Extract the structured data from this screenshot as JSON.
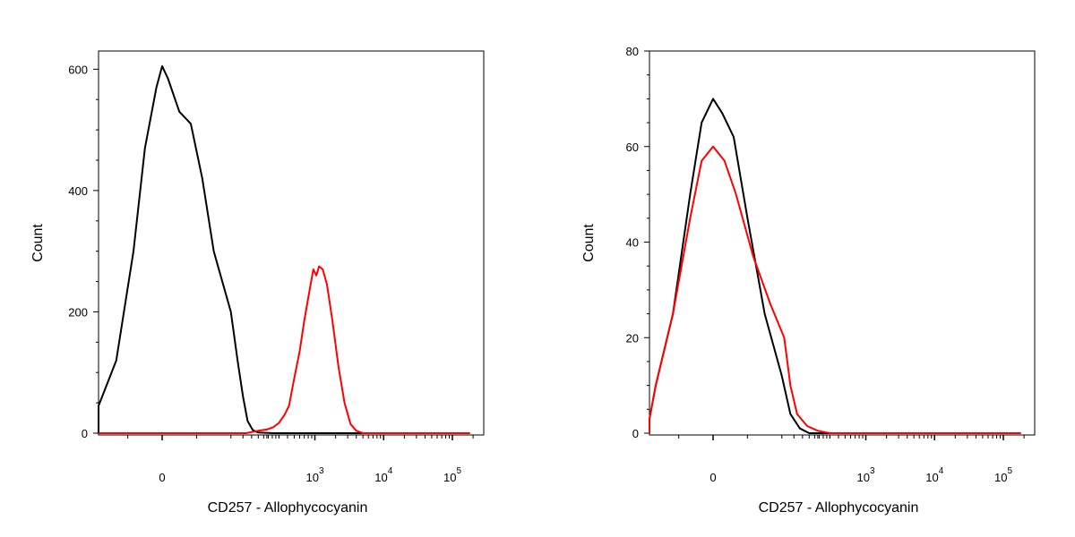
{
  "chart_data": [
    {
      "type": "line",
      "xlabel": "CD257 - Allophycocyanin",
      "ylabel": "Count",
      "x_scale": "biexponential",
      "x_ticks": [
        {
          "value": 0,
          "base": "0",
          "exp": ""
        },
        {
          "value": 1000,
          "base": "10",
          "exp": "3"
        },
        {
          "value": 10000,
          "base": "10",
          "exp": "4"
        },
        {
          "value": 100000,
          "base": "10",
          "exp": "5"
        }
      ],
      "y_ticks": [
        "0",
        "200",
        "400",
        "600"
      ],
      "ylim": [
        0,
        630
      ],
      "grid": false,
      "series": [
        {
          "color": "#000000",
          "points": [
            [
              -300,
              0
            ],
            [
              -150,
              3
            ],
            [
              -100,
              12
            ],
            [
              -60,
              45
            ],
            [
              -40,
              120
            ],
            [
              -25,
              300
            ],
            [
              -15,
              470
            ],
            [
              -5,
              570
            ],
            [
              0,
              605
            ],
            [
              5,
              585
            ],
            [
              15,
              530
            ],
            [
              25,
              510
            ],
            [
              35,
              420
            ],
            [
              45,
              300
            ],
            [
              60,
              200
            ],
            [
              75,
              120
            ],
            [
              90,
              60
            ],
            [
              105,
              20
            ],
            [
              125,
              5
            ],
            [
              150,
              1
            ],
            [
              250,
              0
            ],
            [
              180000,
              0
            ]
          ]
        },
        {
          "color": "#ff0000",
          "points": [
            [
              -300,
              0
            ],
            [
              100,
              0
            ],
            [
              150,
              4
            ],
            [
              200,
              6
            ],
            [
              250,
              10
            ],
            [
              300,
              17
            ],
            [
              360,
              30
            ],
            [
              420,
              45
            ],
            [
              500,
              90
            ],
            [
              600,
              135
            ],
            [
              700,
              185
            ],
            [
              850,
              240
            ],
            [
              950,
              270
            ],
            [
              1050,
              260
            ],
            [
              1150,
              275
            ],
            [
              1300,
              270
            ],
            [
              1500,
              245
            ],
            [
              1800,
              185
            ],
            [
              2200,
              110
            ],
            [
              2700,
              50
            ],
            [
              3300,
              15
            ],
            [
              4000,
              4
            ],
            [
              5000,
              0
            ],
            [
              180000,
              0
            ]
          ]
        }
      ]
    },
    {
      "type": "line",
      "xlabel": "CD257 - Allophycocyanin",
      "ylabel": "Count",
      "x_scale": "biexponential",
      "x_ticks": [
        {
          "value": 0,
          "base": "0",
          "exp": ""
        },
        {
          "value": 1000,
          "base": "10",
          "exp": "3"
        },
        {
          "value": 10000,
          "base": "10",
          "exp": "4"
        },
        {
          "value": 100000,
          "base": "10",
          "exp": "5"
        }
      ],
      "y_ticks": [
        "0",
        "20",
        "40",
        "60",
        "80"
      ],
      "ylim": [
        0,
        80
      ],
      "grid": false,
      "series": [
        {
          "color": "#000000",
          "points": [
            [
              -300,
              0
            ],
            [
              -150,
              0.5
            ],
            [
              -80,
              3
            ],
            [
              -50,
              10
            ],
            [
              -35,
              25
            ],
            [
              -20,
              50
            ],
            [
              -10,
              65
            ],
            [
              0,
              70
            ],
            [
              8,
              67
            ],
            [
              18,
              62
            ],
            [
              30,
              45
            ],
            [
              45,
              25
            ],
            [
              60,
              12
            ],
            [
              80,
              4
            ],
            [
              110,
              1
            ],
            [
              150,
              0
            ],
            [
              180000,
              0
            ]
          ]
        },
        {
          "color": "#ff0000",
          "points": [
            [
              -300,
              0
            ],
            [
              -150,
              0.5
            ],
            [
              -80,
              3
            ],
            [
              -50,
              10
            ],
            [
              -35,
              25
            ],
            [
              -20,
              45
            ],
            [
              -10,
              57
            ],
            [
              0,
              60
            ],
            [
              10,
              57
            ],
            [
              20,
              50
            ],
            [
              35,
              37
            ],
            [
              50,
              27
            ],
            [
              65,
              20
            ],
            [
              80,
              10
            ],
            [
              100,
              4
            ],
            [
              140,
              1.5
            ],
            [
              200,
              0.5
            ],
            [
              300,
              0
            ],
            [
              180000,
              0
            ]
          ]
        }
      ]
    }
  ]
}
